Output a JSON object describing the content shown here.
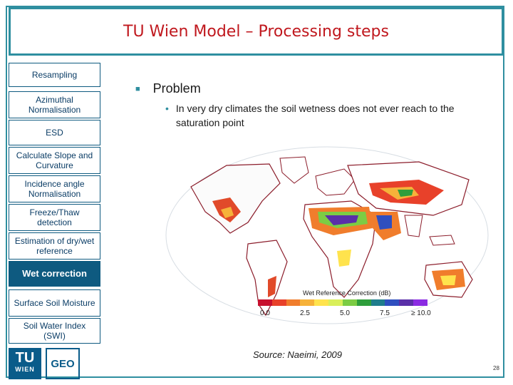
{
  "title": "TU Wien Model – Processing steps",
  "steps": [
    {
      "label": "Resampling",
      "active": false
    },
    {
      "label": "Azimuthal Normalisation",
      "active": false
    },
    {
      "label": "ESD",
      "active": false
    },
    {
      "label": "Calculate Slope and Curvature",
      "active": false
    },
    {
      "label": "Incidence angle Normalisation",
      "active": false
    },
    {
      "label": "Freeze/Thaw detection",
      "active": false
    },
    {
      "label": "Estimation of dry/wet reference",
      "active": false
    },
    {
      "label": "Wet correction",
      "active": true
    },
    {
      "label": "Surface Soil Moisture",
      "active": false
    },
    {
      "label": "Soil Water Index (SWI)",
      "active": false
    }
  ],
  "content": {
    "bullet": "Problem",
    "sub_bullet": "In very dry climates the soil wetness does not ever reach to the saturation point"
  },
  "figure": {
    "legend_title": "Wet Reference Correction (dB)",
    "legend_ticks": [
      "0.0",
      "2.5",
      "5.0",
      "7.5",
      "≥ 10.0"
    ],
    "legend_colors": [
      "#c8102e",
      "#e8412a",
      "#f07d2c",
      "#f6b23a",
      "#ffe34d",
      "#d9ef5a",
      "#7ccc44",
      "#2e9e3c",
      "#1f7d8c",
      "#2f4fbf",
      "#5a2fa8",
      "#8a2be2"
    ],
    "source": "Source: Naeimi, 2009"
  },
  "logo": {
    "tu": "TU",
    "wien": "WIEN",
    "geo": "GEO"
  },
  "page_number": "28"
}
